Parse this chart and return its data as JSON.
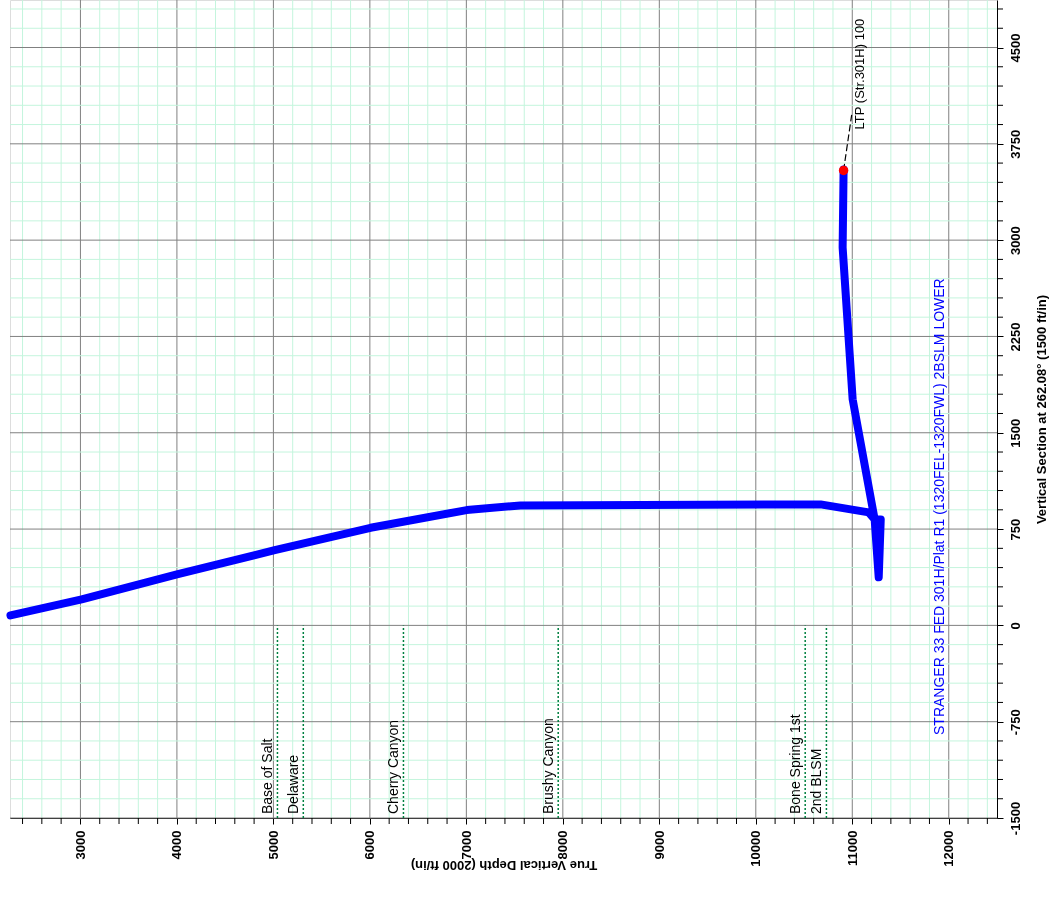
{
  "chart_data": {
    "type": "line",
    "xlabel": "True Vertical Depth (2000 ft/in)",
    "ylabel": "Vertical Section at 262.08° (1500 ft/in)",
    "xlim": [
      2270,
      12500
    ],
    "ylim": [
      -1500,
      4870
    ],
    "xticks": [
      {
        "value": 2400,
        "label": null
      },
      {
        "value": 2600,
        "label": null
      },
      {
        "value": 2800,
        "label": null
      },
      3000,
      {
        "value": 3200,
        "label": null
      },
      {
        "value": 3400,
        "label": null
      },
      {
        "value": 3600,
        "label": null
      },
      {
        "value": 3800,
        "label": null
      },
      4000,
      {
        "value": 4200,
        "label": null
      },
      {
        "value": 4400,
        "label": null
      },
      {
        "value": 4600,
        "label": null
      },
      {
        "value": 4800,
        "label": null
      },
      5000,
      {
        "value": 5200,
        "label": null
      },
      {
        "value": 5400,
        "label": null
      },
      {
        "value": 5600,
        "label": null
      },
      {
        "value": 5800,
        "label": null
      },
      6000,
      {
        "value": 6200,
        "label": null
      },
      {
        "value": 6400,
        "label": null
      },
      {
        "value": 6600,
        "label": null
      },
      {
        "value": 6800,
        "label": null
      },
      7000,
      {
        "value": 7200,
        "label": null
      },
      {
        "value": 7400,
        "label": null
      },
      {
        "value": 7600,
        "label": null
      },
      {
        "value": 7800,
        "label": null
      },
      8000,
      {
        "value": 8200,
        "label": null
      },
      {
        "value": 8400,
        "label": null
      },
      {
        "value": 8600,
        "label": null
      },
      {
        "value": 8800,
        "label": null
      },
      9000,
      {
        "value": 9200,
        "label": null
      },
      {
        "value": 9400,
        "label": null
      },
      {
        "value": 9600,
        "label": null
      },
      {
        "value": 9800,
        "label": null
      },
      10000,
      {
        "value": 10200,
        "label": null
      },
      {
        "value": 10400,
        "label": null
      },
      {
        "value": 10600,
        "label": null
      },
      {
        "value": 10800,
        "label": null
      },
      11000,
      {
        "value": 11200,
        "label": null
      },
      {
        "value": 11400,
        "label": null
      },
      {
        "value": 11600,
        "label": null
      },
      {
        "value": 11800,
        "label": null
      },
      12000,
      {
        "value": 12200,
        "label": null
      },
      {
        "value": 12400,
        "label": null
      }
    ],
    "yticks": [
      -1500,
      {
        "value": -1350,
        "label": null
      },
      {
        "value": -1200,
        "label": null
      },
      {
        "value": -1050,
        "label": null
      },
      {
        "value": -900,
        "label": null
      },
      -750,
      {
        "value": -600,
        "label": null
      },
      {
        "value": -450,
        "label": null
      },
      {
        "value": -300,
        "label": null
      },
      {
        "value": -150,
        "label": null
      },
      0,
      {
        "value": 150,
        "label": null
      },
      {
        "value": 300,
        "label": null
      },
      {
        "value": 450,
        "label": null
      },
      {
        "value": 600,
        "label": null
      },
      750,
      {
        "value": 900,
        "label": null
      },
      {
        "value": 1050,
        "label": null
      },
      {
        "value": 1200,
        "label": null
      },
      {
        "value": 1350,
        "label": null
      },
      1500,
      {
        "value": 1650,
        "label": null
      },
      {
        "value": 1800,
        "label": null
      },
      {
        "value": 1950,
        "label": null
      },
      {
        "value": 2100,
        "label": null
      },
      2250,
      {
        "value": 2400,
        "label": null
      },
      {
        "value": 2550,
        "label": null
      },
      {
        "value": 2700,
        "label": null
      },
      {
        "value": 2850,
        "label": null
      },
      3000,
      {
        "value": 3150,
        "label": null
      },
      {
        "value": 3300,
        "label": null
      },
      {
        "value": 3450,
        "label": null
      },
      {
        "value": 3600,
        "label": null
      },
      3750,
      {
        "value": 3900,
        "label": null
      },
      {
        "value": 4050,
        "label": null
      },
      {
        "value": 4200,
        "label": null
      },
      {
        "value": 4350,
        "label": null
      },
      4500,
      {
        "value": 4650,
        "label": null
      },
      {
        "value": 4800,
        "label": null
      }
    ],
    "grid": true,
    "series": [
      {
        "color": "#0000ff",
        "marker": "none",
        "line_style": "solid",
        "x": [
          2275,
          3013,
          4000,
          5014,
          6007,
          7004,
          7560,
          10672,
          11170,
          11232,
          11274,
          11295,
          11232,
          11004,
          10900,
          10910
        ],
        "values": [
          78,
          202,
          397,
          586,
          760,
          898,
          934,
          942,
          880,
          825,
          374,
          825,
          825,
          1760,
          2943,
          3550
        ]
      },
      {
        "type": "line",
        "color": "#000000",
        "marker": "none",
        "line_style": "dashed",
        "x": [
          10910,
          10993
        ],
        "values": [
          3543,
          3971
        ]
      },
      {
        "type": "scatter",
        "color": "#ff0000",
        "marker": "circle",
        "x": [
          10910
        ],
        "values": [
          3543
        ]
      }
    ],
    "ref_lines": [
      {
        "axis": "x",
        "value": 5042,
        "label": "Base of Salt",
        "color": "#008040",
        "line_style": "dotted"
      },
      {
        "axis": "x",
        "value": 5310,
        "label": "Delaware",
        "color": "#008040",
        "line_style": "dotted"
      },
      {
        "axis": "x",
        "value": 6348,
        "label": "Cherry Canyon",
        "color": "#008040",
        "line_style": "dotted"
      },
      {
        "axis": "x",
        "value": 7952,
        "label": "Brushy Canyon",
        "color": "#008040",
        "line_style": "dotted"
      },
      {
        "axis": "x",
        "value": 10512,
        "label": "Bone Spring 1st",
        "color": "#008040",
        "line_style": "dotted"
      },
      {
        "axis": "x",
        "value": 10732,
        "label": "2nd BLSM",
        "color": "#008040",
        "line_style": "dotted"
      }
    ],
    "annotations": [
      "STRANGER 33 FED 301H/Plat R1 (1320FEL-1320FWL) 2BSLM LOWER",
      "LTP (Str.301H) 100"
    ]
  }
}
